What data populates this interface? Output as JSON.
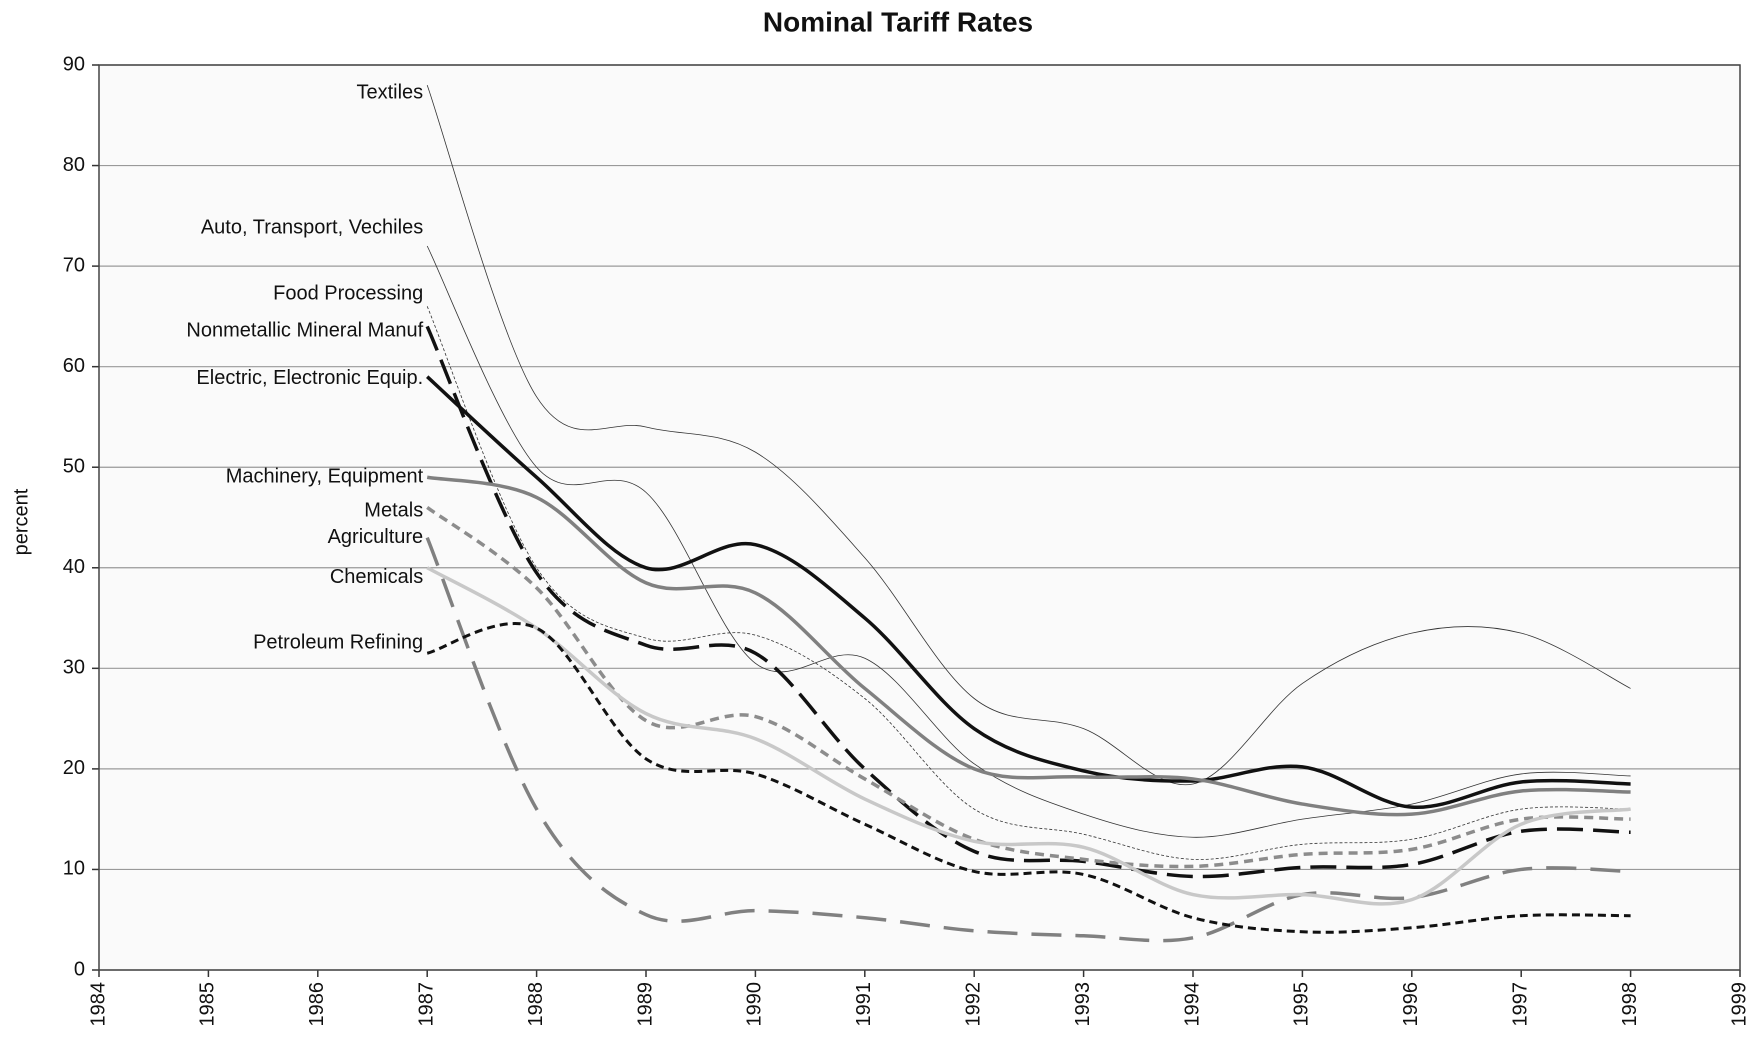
{
  "chart_data": {
    "type": "line",
    "title": "Nominal Tariff Rates",
    "ylabel": "percent",
    "x": [
      1987,
      1988,
      1989,
      1990,
      1991,
      1992,
      1993,
      1994,
      1995,
      1996,
      1997,
      1998
    ],
    "xlim": [
      1984,
      1999
    ],
    "xticks": [
      1984,
      1985,
      1986,
      1987,
      1988,
      1989,
      1990,
      1991,
      1992,
      1993,
      1994,
      1995,
      1996,
      1997,
      1998,
      1999
    ],
    "ylim": [
      0,
      90
    ],
    "yticks": [
      0,
      10,
      20,
      30,
      40,
      50,
      60,
      70,
      80,
      90
    ],
    "grid": true,
    "series": [
      {
        "name": "Textiles",
        "color": "#333333",
        "values": [
          88,
          57,
          54,
          51.5,
          41,
          27,
          24,
          18.5,
          28.5,
          33.5,
          33.5,
          28
        ]
      },
      {
        "name": "Auto, Transport, Vechiles",
        "color": "#333333",
        "values": [
          72,
          50,
          47.5,
          30.5,
          31,
          20.5,
          15.5,
          13.2,
          15,
          16.5,
          19.5,
          19.3
        ]
      },
      {
        "name": "Food Processing",
        "color": "#333333",
        "values": [
          66,
          40,
          33,
          33.3,
          27,
          16,
          13.5,
          11,
          12.5,
          13,
          16,
          16
        ]
      },
      {
        "name": "Nonmetallic Mineral Manuf",
        "color": "#111111",
        "values": [
          64,
          39.5,
          32.3,
          31.5,
          20,
          11.8,
          10.8,
          9.3,
          10.2,
          10.5,
          13.8,
          13.7
        ]
      },
      {
        "name": "Electric, Electronic Equip.",
        "color": "#111111",
        "values": [
          59,
          49,
          40,
          42.3,
          35,
          24,
          19.8,
          18.8,
          20.2,
          16.2,
          18.7,
          18.5
        ]
      },
      {
        "name": "Machinery, Equipment",
        "color": "#808080",
        "values": [
          49,
          47,
          38.5,
          37.5,
          28,
          20,
          19.2,
          19,
          16.5,
          15.5,
          17.8,
          17.7
        ]
      },
      {
        "name": "Metals",
        "color": "#8c8c8c",
        "values": [
          46,
          38,
          24.8,
          25.2,
          19,
          13,
          11,
          10.3,
          11.5,
          12,
          15,
          15
        ]
      },
      {
        "name": "Agriculture",
        "color": "#808080",
        "values": [
          43,
          16,
          5.5,
          5.9,
          5.2,
          3.9,
          3.4,
          3.2,
          7.5,
          7.2,
          10,
          9.8
        ]
      },
      {
        "name": "Chemicals",
        "color": "#c8c8c8",
        "values": [
          40,
          34,
          25.5,
          23,
          17,
          12.8,
          12.2,
          7.5,
          7.5,
          7,
          14.5,
          16
        ]
      },
      {
        "name": "Petroleum Refining",
        "color": "#111111",
        "values": [
          31.5,
          34,
          21,
          19.5,
          14.5,
          9.8,
          9.5,
          5.2,
          3.8,
          4.2,
          5.4,
          5.4
        ]
      }
    ]
  }
}
